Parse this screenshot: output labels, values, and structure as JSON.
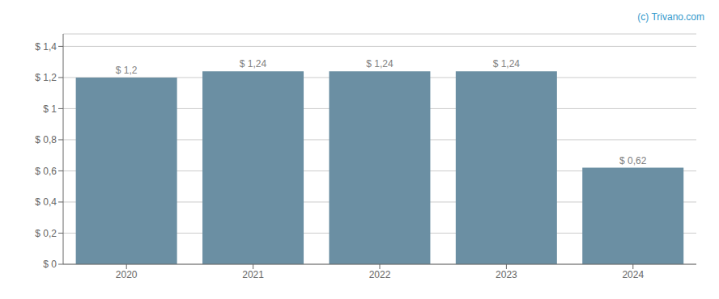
{
  "chart_data": {
    "type": "bar",
    "categories": [
      "2020",
      "2021",
      "2022",
      "2023",
      "2024"
    ],
    "values": [
      1.2,
      1.24,
      1.24,
      1.24,
      0.62
    ],
    "value_labels": [
      "$ 1,2",
      "$ 1,24",
      "$ 1,24",
      "$ 1,24",
      "$ 0,62"
    ],
    "data_labels": true,
    "color": "#6b8fa3",
    "ylim": [
      0,
      1.48
    ],
    "yticks": [
      {
        "value": 0,
        "label": "$ 0"
      },
      {
        "value": 0.2,
        "label": "$ 0,2"
      },
      {
        "value": 0.4,
        "label": "$ 0,4"
      },
      {
        "value": 0.6,
        "label": "$ 0,6"
      },
      {
        "value": 0.8,
        "label": "$ 0,8"
      },
      {
        "value": 1.0,
        "label": "$ 1"
      },
      {
        "value": 1.2,
        "label": "$ 1,2"
      },
      {
        "value": 1.4,
        "label": "$ 1,4"
      }
    ],
    "grid": true,
    "annotations": [
      "(c) Trivano.com"
    ]
  }
}
